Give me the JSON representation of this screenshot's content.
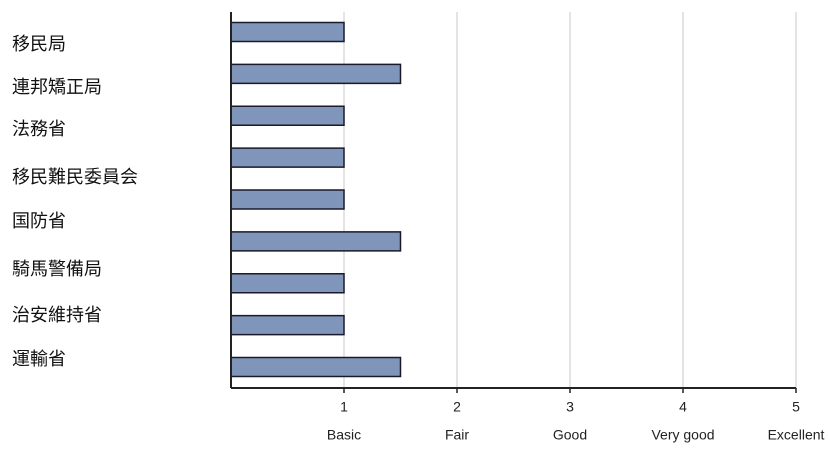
{
  "chart_data": {
    "type": "bar",
    "orientation": "horizontal",
    "categories": [
      "移民局",
      "連邦矯正局",
      "法務省",
      "移民難民委員会",
      "国防省",
      "騎馬警備局",
      null,
      "治安維持省",
      "運輸省"
    ],
    "values": [
      1,
      1.5,
      1,
      1,
      1,
      1.5,
      1,
      1,
      1.5
    ],
    "color": "#7f95b9",
    "xlim": [
      0,
      5
    ],
    "xticks": [
      1,
      2,
      3,
      4,
      5
    ],
    "xtick_names": [
      "Basic",
      "Fair",
      "Good",
      "Very good",
      "Excellent"
    ],
    "grid": true
  }
}
